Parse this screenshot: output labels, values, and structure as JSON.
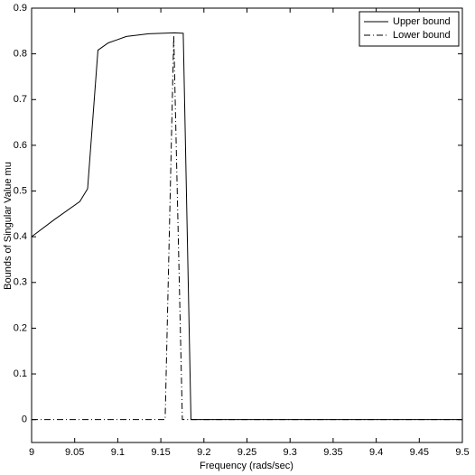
{
  "chart_data": {
    "type": "line",
    "x_label": "Frequency (rads/sec)",
    "y_label": "Bounds of Singular Value  mu",
    "xlim": [
      9,
      9.5
    ],
    "xticks": [
      9,
      9.05,
      9.1,
      9.15,
      9.2,
      9.25,
      9.3,
      9.35,
      9.4,
      9.45,
      9.5
    ],
    "ylim": [
      -0.05,
      0.9
    ],
    "yticks": [
      0,
      0.1,
      0.2,
      0.3,
      0.4,
      0.5,
      0.6,
      0.7,
      0.8,
      0.9
    ],
    "grid": false,
    "legend": "upper right",
    "series": [
      {
        "name": "Upper bound",
        "color": "#000000",
        "style": "solid",
        "x": [
          9,
          9.026,
          9.056,
          9.065,
          9.077,
          9.089,
          9.11,
          9.136,
          9.166,
          9.176,
          9.185,
          9.5
        ],
        "values": [
          0.4,
          0.437,
          0.477,
          0.505,
          0.808,
          0.824,
          0.838,
          0.844,
          0.846,
          0.845,
          0,
          0
        ]
      },
      {
        "name": "Lower bound",
        "color": "#000000",
        "style": "dashdot",
        "x": [
          9,
          9.155,
          9.165,
          9.175,
          9.5
        ],
        "values": [
          0,
          0,
          0.84,
          0,
          0
        ]
      }
    ]
  }
}
